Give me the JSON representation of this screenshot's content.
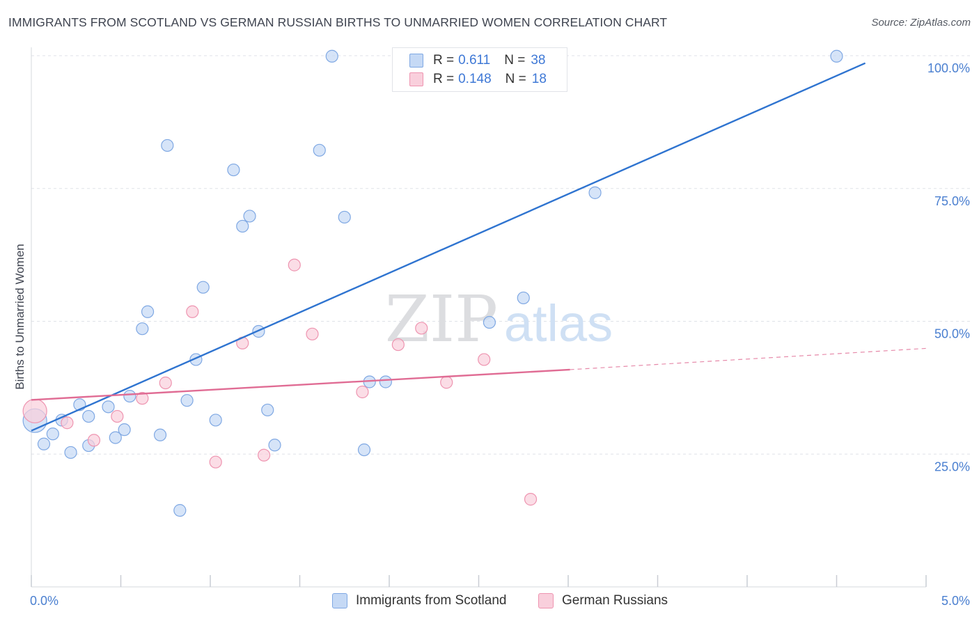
{
  "header": {
    "title": "IMMIGRANTS FROM SCOTLAND VS GERMAN RUSSIAN BIRTHS TO UNMARRIED WOMEN CORRELATION CHART",
    "source": "Source: ZipAtlas.com"
  },
  "watermark": {
    "zip": "ZIP",
    "atlas": "atlas"
  },
  "legend": {
    "rows": [
      {
        "r_label": "R =",
        "r_value": "0.611",
        "n_label": "N =",
        "n_value": "38",
        "color": "#a9c6f0"
      },
      {
        "r_label": "R =",
        "r_value": "0.148",
        "n_label": "N =",
        "n_value": "18",
        "color": "#f6b7c9"
      }
    ]
  },
  "bottom_legend": {
    "items": [
      {
        "label": "Immigrants from Scotland",
        "color": "#a9c6f0"
      },
      {
        "label": "German Russians",
        "color": "#f6b7c9"
      }
    ]
  },
  "colors": {
    "blue_fill": "#c5d9f5",
    "blue_stroke": "#7fa8e3",
    "blue_line": "#2f74d0",
    "pink_fill": "#f9cfdc",
    "pink_stroke": "#ee94b0",
    "pink_line": "#e06c94",
    "grid": "#dfe2e8",
    "tick_text": "#4a7fd0"
  },
  "chart_data": {
    "type": "scatter",
    "title": "IMMIGRANTS FROM SCOTLAND VS GERMAN RUSSIAN BIRTHS TO UNMARRIED WOMEN CORRELATION CHART",
    "xlabel": "",
    "ylabel": "Births to Unmarried Women",
    "xlim": [
      0,
      5
    ],
    "ylim": [
      0,
      100
    ],
    "x_ticks": [
      0,
      5
    ],
    "x_tick_labels": [
      "0.0%",
      "5.0%"
    ],
    "y_ticks": [
      25,
      50,
      75,
      100
    ],
    "y_tick_labels": [
      "25.0%",
      "50.0%",
      "75.0%",
      "100.0%"
    ],
    "grid": true,
    "legend_position": "top-center",
    "series": [
      {
        "name": "Immigrants from Scotland",
        "R": 0.611,
        "N": 38,
        "trend": {
          "x": [
            0,
            4.66
          ],
          "y": [
            29.4,
            98.6
          ]
        },
        "points": [
          {
            "x": 0.02,
            "y": 31.3,
            "big": true
          },
          {
            "x": 0.07,
            "y": 26.9
          },
          {
            "x": 0.12,
            "y": 28.8
          },
          {
            "x": 0.17,
            "y": 31.4
          },
          {
            "x": 0.22,
            "y": 25.3
          },
          {
            "x": 0.27,
            "y": 34.3
          },
          {
            "x": 0.32,
            "y": 26.6
          },
          {
            "x": 0.32,
            "y": 32.1
          },
          {
            "x": 0.43,
            "y": 33.9
          },
          {
            "x": 0.47,
            "y": 28.1
          },
          {
            "x": 0.52,
            "y": 29.6
          },
          {
            "x": 0.55,
            "y": 35.9
          },
          {
            "x": 0.62,
            "y": 48.6
          },
          {
            "x": 0.65,
            "y": 51.8
          },
          {
            "x": 0.72,
            "y": 28.6
          },
          {
            "x": 0.76,
            "y": 83.1
          },
          {
            "x": 0.83,
            "y": 14.4
          },
          {
            "x": 0.87,
            "y": 35.1
          },
          {
            "x": 0.92,
            "y": 42.8
          },
          {
            "x": 0.96,
            "y": 56.4
          },
          {
            "x": 1.03,
            "y": 31.4
          },
          {
            "x": 1.13,
            "y": 78.5
          },
          {
            "x": 1.18,
            "y": 67.9
          },
          {
            "x": 1.22,
            "y": 69.8
          },
          {
            "x": 1.27,
            "y": 48.1
          },
          {
            "x": 1.32,
            "y": 33.3
          },
          {
            "x": 1.36,
            "y": 26.7
          },
          {
            "x": 1.61,
            "y": 82.2
          },
          {
            "x": 1.68,
            "y": 99.9
          },
          {
            "x": 1.75,
            "y": 69.6
          },
          {
            "x": 1.86,
            "y": 25.8
          },
          {
            "x": 1.89,
            "y": 38.6
          },
          {
            "x": 1.98,
            "y": 38.6
          },
          {
            "x": 2.37,
            "y": 99.9
          },
          {
            "x": 2.56,
            "y": 49.8
          },
          {
            "x": 2.75,
            "y": 54.4
          },
          {
            "x": 3.15,
            "y": 74.2
          },
          {
            "x": 4.5,
            "y": 99.9
          }
        ]
      },
      {
        "name": "German Russians",
        "R": 0.148,
        "N": 18,
        "trend": {
          "x": [
            0,
            3.01
          ],
          "y": [
            35.2,
            40.9
          ]
        },
        "trend_extension": {
          "x": [
            3.01,
            5.0
          ],
          "y": [
            40.9,
            44.9
          ]
        },
        "points": [
          {
            "x": 0.02,
            "y": 33.1,
            "big": true
          },
          {
            "x": 0.2,
            "y": 30.9
          },
          {
            "x": 0.35,
            "y": 27.6
          },
          {
            "x": 0.48,
            "y": 32.1
          },
          {
            "x": 0.62,
            "y": 35.5
          },
          {
            "x": 0.75,
            "y": 38.4
          },
          {
            "x": 0.9,
            "y": 51.8
          },
          {
            "x": 1.03,
            "y": 23.5
          },
          {
            "x": 1.18,
            "y": 45.9
          },
          {
            "x": 1.3,
            "y": 24.8
          },
          {
            "x": 1.47,
            "y": 60.6
          },
          {
            "x": 1.57,
            "y": 47.6
          },
          {
            "x": 1.85,
            "y": 36.7
          },
          {
            "x": 2.05,
            "y": 45.6
          },
          {
            "x": 2.18,
            "y": 48.7
          },
          {
            "x": 2.32,
            "y": 38.5
          },
          {
            "x": 2.53,
            "y": 42.8
          },
          {
            "x": 2.79,
            "y": 16.5
          }
        ]
      }
    ]
  }
}
